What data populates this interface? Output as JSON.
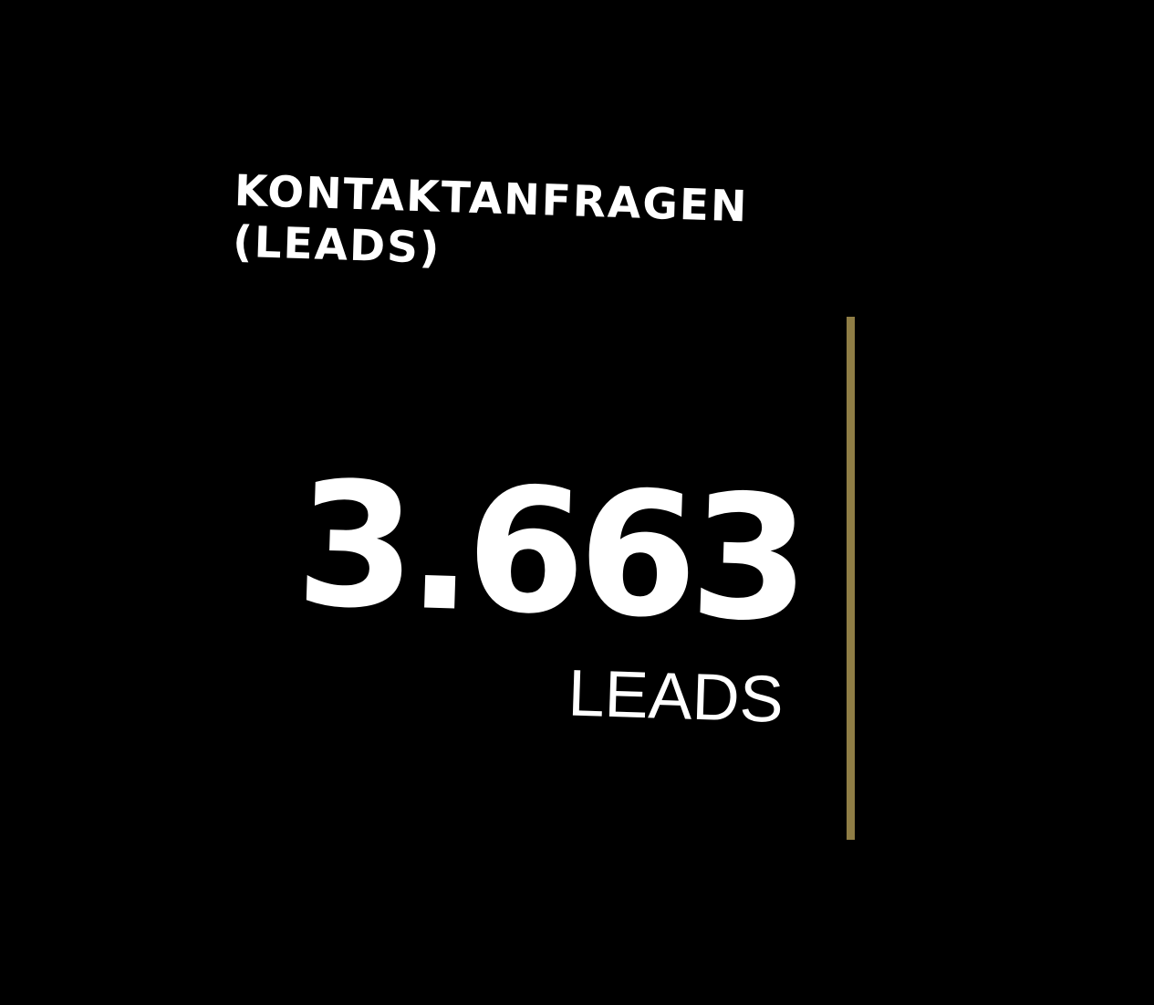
{
  "stat": {
    "title_line1": "KONTAKTANFRAGEN",
    "title_line2": "(LEADS)",
    "value": "3.663",
    "unit": "LEADS"
  },
  "colors": {
    "background": "#000000",
    "text": "#ffffff",
    "accent": "#8f7d45"
  }
}
